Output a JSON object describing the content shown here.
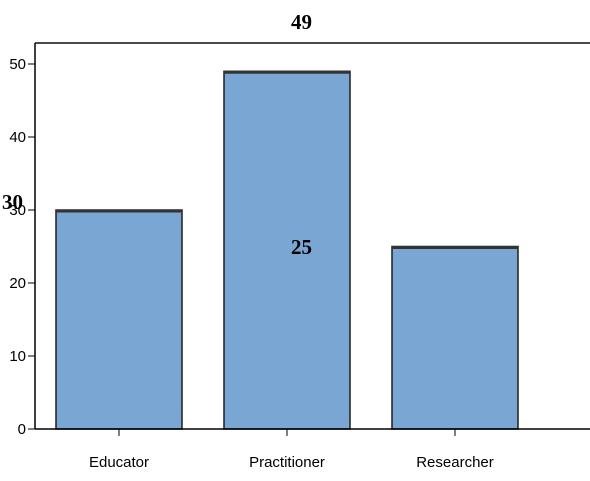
{
  "chart_data": {
    "type": "bar",
    "categories": [
      "Educator",
      "Practitioner",
      "Researcher"
    ],
    "values": [
      30,
      49,
      25
    ],
    "data_labels": [
      "30",
      "49",
      "25"
    ],
    "ylim": [
      0,
      52
    ],
    "yticks": [
      0,
      10,
      20,
      30,
      40,
      50
    ],
    "bar_color": "#7aa6d4",
    "bar_outline_color": "#1f1f1f",
    "grid": false,
    "title": "",
    "xlabel": "",
    "ylabel": ""
  }
}
